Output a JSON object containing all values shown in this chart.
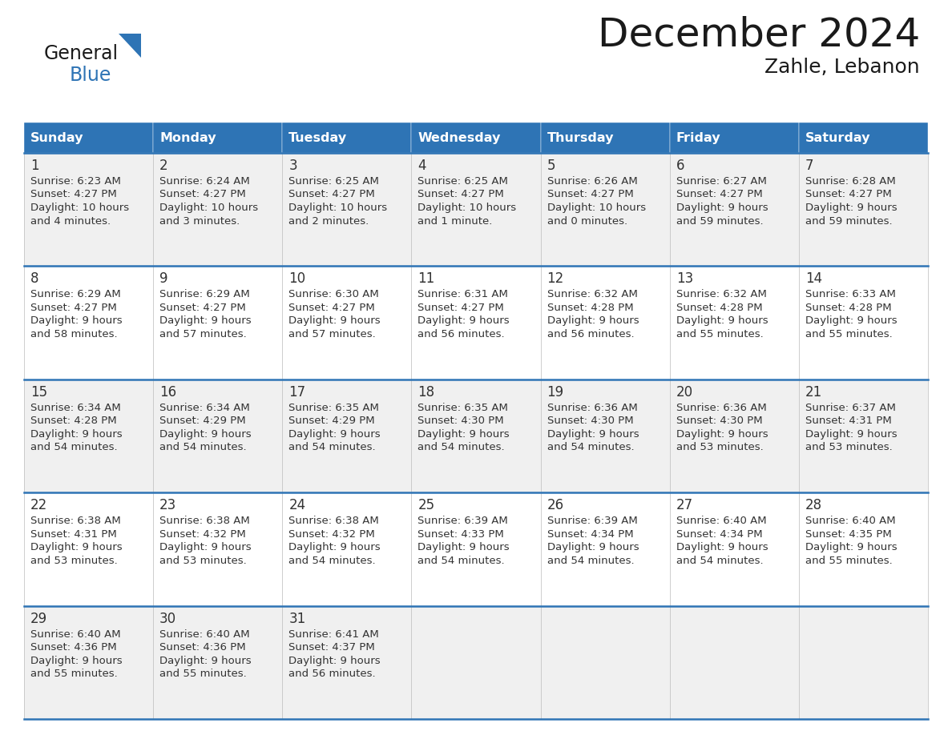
{
  "title": "December 2024",
  "subtitle": "Zahle, Lebanon",
  "header_bg": "#2E74B5",
  "header_text": "#FFFFFF",
  "day_names": [
    "Sunday",
    "Monday",
    "Tuesday",
    "Wednesday",
    "Thursday",
    "Friday",
    "Saturday"
  ],
  "row_bg_odd": "#F0F0F0",
  "row_bg_even": "#FFFFFF",
  "cell_text_color": "#333333",
  "divider_color": "#2E74B5",
  "logo_general_color": "#1a1a1a",
  "logo_blue_color": "#2E74B5",
  "logo_triangle_color": "#2E74B5",
  "title_color": "#1a1a1a",
  "subtitle_color": "#1a1a1a",
  "days": [
    {
      "day": 1,
      "col": 0,
      "row": 0,
      "sunrise": "6:23 AM",
      "sunset": "4:27 PM",
      "daylight_line1": "Daylight: 10 hours",
      "daylight_line2": "and 4 minutes."
    },
    {
      "day": 2,
      "col": 1,
      "row": 0,
      "sunrise": "6:24 AM",
      "sunset": "4:27 PM",
      "daylight_line1": "Daylight: 10 hours",
      "daylight_line2": "and 3 minutes."
    },
    {
      "day": 3,
      "col": 2,
      "row": 0,
      "sunrise": "6:25 AM",
      "sunset": "4:27 PM",
      "daylight_line1": "Daylight: 10 hours",
      "daylight_line2": "and 2 minutes."
    },
    {
      "day": 4,
      "col": 3,
      "row": 0,
      "sunrise": "6:25 AM",
      "sunset": "4:27 PM",
      "daylight_line1": "Daylight: 10 hours",
      "daylight_line2": "and 1 minute."
    },
    {
      "day": 5,
      "col": 4,
      "row": 0,
      "sunrise": "6:26 AM",
      "sunset": "4:27 PM",
      "daylight_line1": "Daylight: 10 hours",
      "daylight_line2": "and 0 minutes."
    },
    {
      "day": 6,
      "col": 5,
      "row": 0,
      "sunrise": "6:27 AM",
      "sunset": "4:27 PM",
      "daylight_line1": "Daylight: 9 hours",
      "daylight_line2": "and 59 minutes."
    },
    {
      "day": 7,
      "col": 6,
      "row": 0,
      "sunrise": "6:28 AM",
      "sunset": "4:27 PM",
      "daylight_line1": "Daylight: 9 hours",
      "daylight_line2": "and 59 minutes."
    },
    {
      "day": 8,
      "col": 0,
      "row": 1,
      "sunrise": "6:29 AM",
      "sunset": "4:27 PM",
      "daylight_line1": "Daylight: 9 hours",
      "daylight_line2": "and 58 minutes."
    },
    {
      "day": 9,
      "col": 1,
      "row": 1,
      "sunrise": "6:29 AM",
      "sunset": "4:27 PM",
      "daylight_line1": "Daylight: 9 hours",
      "daylight_line2": "and 57 minutes."
    },
    {
      "day": 10,
      "col": 2,
      "row": 1,
      "sunrise": "6:30 AM",
      "sunset": "4:27 PM",
      "daylight_line1": "Daylight: 9 hours",
      "daylight_line2": "and 57 minutes."
    },
    {
      "day": 11,
      "col": 3,
      "row": 1,
      "sunrise": "6:31 AM",
      "sunset": "4:27 PM",
      "daylight_line1": "Daylight: 9 hours",
      "daylight_line2": "and 56 minutes."
    },
    {
      "day": 12,
      "col": 4,
      "row": 1,
      "sunrise": "6:32 AM",
      "sunset": "4:28 PM",
      "daylight_line1": "Daylight: 9 hours",
      "daylight_line2": "and 56 minutes."
    },
    {
      "day": 13,
      "col": 5,
      "row": 1,
      "sunrise": "6:32 AM",
      "sunset": "4:28 PM",
      "daylight_line1": "Daylight: 9 hours",
      "daylight_line2": "and 55 minutes."
    },
    {
      "day": 14,
      "col": 6,
      "row": 1,
      "sunrise": "6:33 AM",
      "sunset": "4:28 PM",
      "daylight_line1": "Daylight: 9 hours",
      "daylight_line2": "and 55 minutes."
    },
    {
      "day": 15,
      "col": 0,
      "row": 2,
      "sunrise": "6:34 AM",
      "sunset": "4:28 PM",
      "daylight_line1": "Daylight: 9 hours",
      "daylight_line2": "and 54 minutes."
    },
    {
      "day": 16,
      "col": 1,
      "row": 2,
      "sunrise": "6:34 AM",
      "sunset": "4:29 PM",
      "daylight_line1": "Daylight: 9 hours",
      "daylight_line2": "and 54 minutes."
    },
    {
      "day": 17,
      "col": 2,
      "row": 2,
      "sunrise": "6:35 AM",
      "sunset": "4:29 PM",
      "daylight_line1": "Daylight: 9 hours",
      "daylight_line2": "and 54 minutes."
    },
    {
      "day": 18,
      "col": 3,
      "row": 2,
      "sunrise": "6:35 AM",
      "sunset": "4:30 PM",
      "daylight_line1": "Daylight: 9 hours",
      "daylight_line2": "and 54 minutes."
    },
    {
      "day": 19,
      "col": 4,
      "row": 2,
      "sunrise": "6:36 AM",
      "sunset": "4:30 PM",
      "daylight_line1": "Daylight: 9 hours",
      "daylight_line2": "and 54 minutes."
    },
    {
      "day": 20,
      "col": 5,
      "row": 2,
      "sunrise": "6:36 AM",
      "sunset": "4:30 PM",
      "daylight_line1": "Daylight: 9 hours",
      "daylight_line2": "and 53 minutes."
    },
    {
      "day": 21,
      "col": 6,
      "row": 2,
      "sunrise": "6:37 AM",
      "sunset": "4:31 PM",
      "daylight_line1": "Daylight: 9 hours",
      "daylight_line2": "and 53 minutes."
    },
    {
      "day": 22,
      "col": 0,
      "row": 3,
      "sunrise": "6:38 AM",
      "sunset": "4:31 PM",
      "daylight_line1": "Daylight: 9 hours",
      "daylight_line2": "and 53 minutes."
    },
    {
      "day": 23,
      "col": 1,
      "row": 3,
      "sunrise": "6:38 AM",
      "sunset": "4:32 PM",
      "daylight_line1": "Daylight: 9 hours",
      "daylight_line2": "and 53 minutes."
    },
    {
      "day": 24,
      "col": 2,
      "row": 3,
      "sunrise": "6:38 AM",
      "sunset": "4:32 PM",
      "daylight_line1": "Daylight: 9 hours",
      "daylight_line2": "and 54 minutes."
    },
    {
      "day": 25,
      "col": 3,
      "row": 3,
      "sunrise": "6:39 AM",
      "sunset": "4:33 PM",
      "daylight_line1": "Daylight: 9 hours",
      "daylight_line2": "and 54 minutes."
    },
    {
      "day": 26,
      "col": 4,
      "row": 3,
      "sunrise": "6:39 AM",
      "sunset": "4:34 PM",
      "daylight_line1": "Daylight: 9 hours",
      "daylight_line2": "and 54 minutes."
    },
    {
      "day": 27,
      "col": 5,
      "row": 3,
      "sunrise": "6:40 AM",
      "sunset": "4:34 PM",
      "daylight_line1": "Daylight: 9 hours",
      "daylight_line2": "and 54 minutes."
    },
    {
      "day": 28,
      "col": 6,
      "row": 3,
      "sunrise": "6:40 AM",
      "sunset": "4:35 PM",
      "daylight_line1": "Daylight: 9 hours",
      "daylight_line2": "and 55 minutes."
    },
    {
      "day": 29,
      "col": 0,
      "row": 4,
      "sunrise": "6:40 AM",
      "sunset": "4:36 PM",
      "daylight_line1": "Daylight: 9 hours",
      "daylight_line2": "and 55 minutes."
    },
    {
      "day": 30,
      "col": 1,
      "row": 4,
      "sunrise": "6:40 AM",
      "sunset": "4:36 PM",
      "daylight_line1": "Daylight: 9 hours",
      "daylight_line2": "and 55 minutes."
    },
    {
      "day": 31,
      "col": 2,
      "row": 4,
      "sunrise": "6:41 AM",
      "sunset": "4:37 PM",
      "daylight_line1": "Daylight: 9 hours",
      "daylight_line2": "and 56 minutes."
    }
  ]
}
